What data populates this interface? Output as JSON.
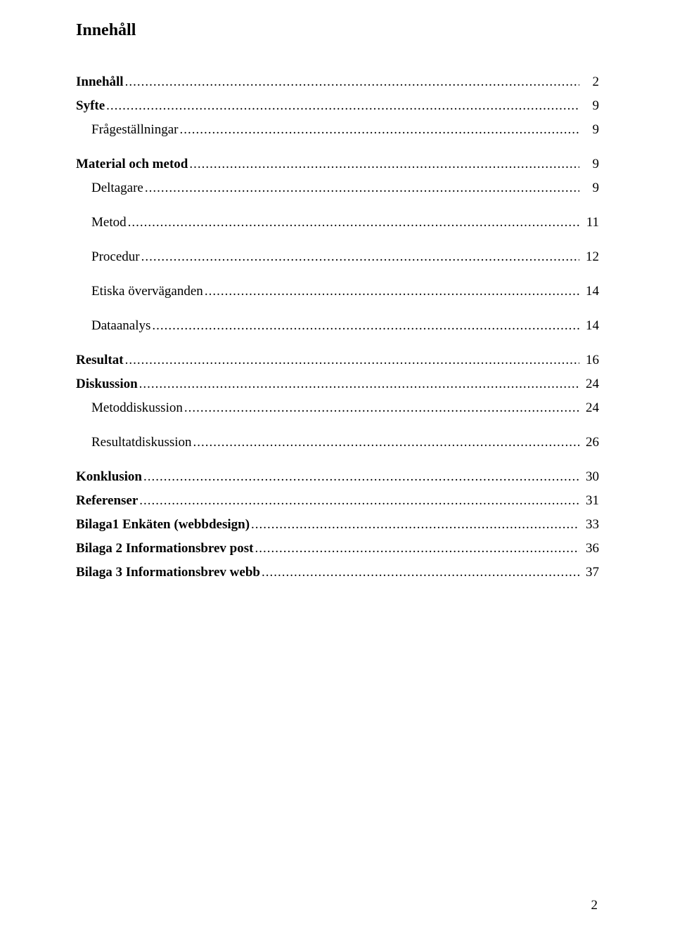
{
  "title": "Innehåll",
  "page_number": "2",
  "leader_char": ".",
  "leader_repeat": 240,
  "colors": {
    "text": "#000000",
    "background": "#ffffff"
  },
  "typography": {
    "font_family": "Times New Roman",
    "title_fontsize_pt": 18,
    "entry_fontsize_pt": 14,
    "title_weight": "bold"
  },
  "toc": [
    {
      "label": "Innehåll",
      "page": "2",
      "bold": true,
      "indent": 0,
      "gap_before": false
    },
    {
      "label": "Syfte",
      "page": "9",
      "bold": true,
      "indent": 0,
      "gap_before": false
    },
    {
      "label": "Frågeställningar",
      "page": "9",
      "bold": false,
      "indent": 1,
      "gap_before": false
    },
    {
      "label": "Material och metod",
      "page": "9",
      "bold": true,
      "indent": 0,
      "gap_before": true
    },
    {
      "label": "Deltagare",
      "page": "9",
      "bold": false,
      "indent": 1,
      "gap_before": false
    },
    {
      "label": "Metod",
      "page": "11",
      "bold": false,
      "indent": 1,
      "gap_before": true
    },
    {
      "label": "Procedur",
      "page": "12",
      "bold": false,
      "indent": 1,
      "gap_before": true
    },
    {
      "label": "Etiska överväganden",
      "page": "14",
      "bold": false,
      "indent": 1,
      "gap_before": true
    },
    {
      "label": "Dataanalys",
      "page": "14",
      "bold": false,
      "indent": 1,
      "gap_before": true
    },
    {
      "label": "Resultat",
      "page": "16",
      "bold": true,
      "indent": 0,
      "gap_before": true
    },
    {
      "label": "Diskussion",
      "page": "24",
      "bold": true,
      "indent": 0,
      "gap_before": false
    },
    {
      "label": "Metoddiskussion",
      "page": "24",
      "bold": false,
      "indent": 1,
      "gap_before": false
    },
    {
      "label": "Resultatdiskussion",
      "page": "26",
      "bold": false,
      "indent": 1,
      "gap_before": true
    },
    {
      "label": "Konklusion",
      "page": "30",
      "bold": true,
      "indent": 0,
      "gap_before": true
    },
    {
      "label": "Referenser",
      "page": "31",
      "bold": true,
      "indent": 0,
      "gap_before": false
    },
    {
      "label": "Bilaga1 Enkäten (webbdesign)",
      "page": "33",
      "bold": true,
      "indent": 0,
      "gap_before": false
    },
    {
      "label": "Bilaga 2 Informationsbrev post",
      "page": "36",
      "bold": true,
      "indent": 0,
      "gap_before": false
    },
    {
      "label": "Bilaga 3 Informationsbrev webb",
      "page": "37",
      "bold": true,
      "indent": 0,
      "gap_before": false
    }
  ]
}
